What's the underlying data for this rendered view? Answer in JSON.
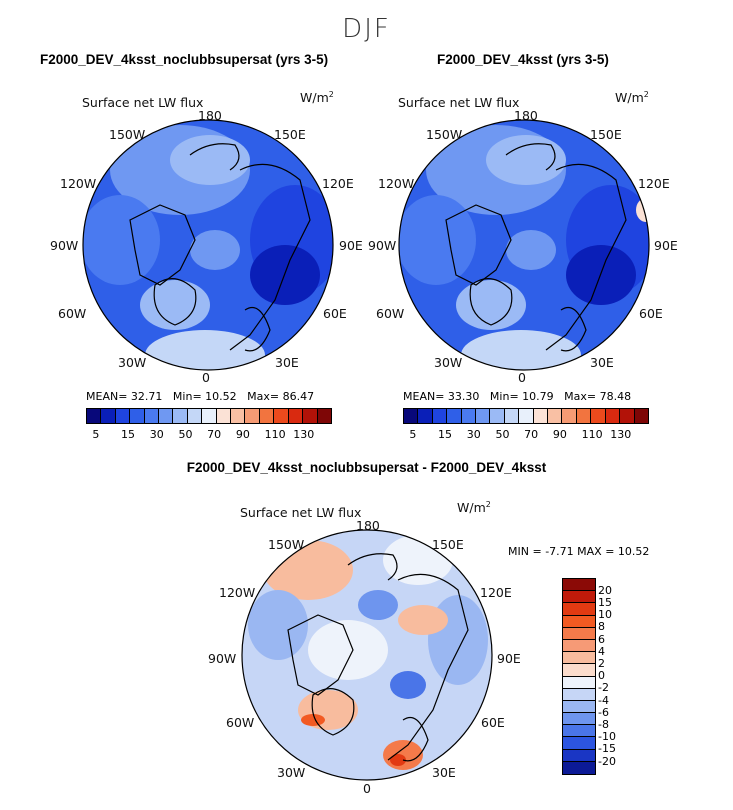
{
  "figure": {
    "season": "DJF",
    "diff_title": "F2000_DEV_4ksst_noclubbsupersat - F2000_DEV_4ksst"
  },
  "panels": [
    {
      "title": "F2000_DEV_4ksst_noclubbsupersat (yrs 3-5)",
      "variable": "Surface net LW flux",
      "units": "W/m",
      "units_exp": "2",
      "stats": {
        "mean_label": "MEAN=",
        "mean": "32.71",
        "min_label": "Min=",
        "min": "10.52",
        "max_label": "Max=",
        "max": "86.47"
      }
    },
    {
      "title": "F2000_DEV_4ksst (yrs 3-5)",
      "variable": "Surface net LW flux",
      "units": "W/m",
      "units_exp": "2",
      "stats": {
        "mean_label": "MEAN=",
        "mean": "33.30",
        "min_label": "Min=",
        "min": "10.79",
        "max_label": "Max=",
        "max": "78.48"
      }
    },
    {
      "title": "",
      "variable": "Surface net LW flux",
      "units": "W/m",
      "units_exp": "2",
      "stats": {
        "min_label": "MIN =",
        "min": "-7.71",
        "max_label": "MAX =",
        "max": "10.52"
      }
    }
  ],
  "longitude_labels": {
    "top": "180",
    "bottom": "0",
    "left": [
      "150W",
      "120W",
      "90W",
      "60W",
      "30W"
    ],
    "right": [
      "150E",
      "120E",
      "90E",
      "60E",
      "30E"
    ]
  },
  "colorbars": {
    "abs": {
      "ticks": [
        "5",
        "15",
        "30",
        "50",
        "70",
        "90",
        "110",
        "130"
      ],
      "colors": [
        "#08087a",
        "#0a1fb8",
        "#1f44e0",
        "#2f5fe8",
        "#4a7af0",
        "#6f98f2",
        "#9bbaf5",
        "#c4d7f7",
        "#e8f0fb",
        "#fbe2d6",
        "#f9c0a4",
        "#f69b74",
        "#f2743f",
        "#ec4a1d",
        "#d92a10",
        "#b21208",
        "#7e0606"
      ]
    },
    "diff": {
      "ticks": [
        "20",
        "15",
        "10",
        "8",
        "6",
        "4",
        "2",
        "0",
        "-2",
        "-4",
        "-6",
        "-8",
        "-10",
        "-15",
        "-20"
      ],
      "colors": [
        "#8b0a06",
        "#c01a0a",
        "#e23a12",
        "#f25a22",
        "#f47a4a",
        "#f69a76",
        "#f8bc9e",
        "#fbdccc",
        "#eef3fb",
        "#c6d6f6",
        "#9ab7f2",
        "#6e95ee",
        "#4a75e8",
        "#2c55e0",
        "#1a36c4",
        "#0c1a96"
      ]
    }
  },
  "chart_data": {
    "type": "heatmap",
    "description_variable": "Surface net LW flux",
    "units": "W/m^2",
    "projection": "north polar stereographic",
    "maps": [
      {
        "name": "F2000_DEV_4ksst_noclubbsupersat (yrs 3-5)",
        "mean": 32.71,
        "min": 10.52,
        "max": 86.47
      },
      {
        "name": "F2000_DEV_4ksst (yrs 3-5)",
        "mean": 33.3,
        "min": 10.79,
        "max": 78.48
      },
      {
        "name": "F2000_DEV_4ksst_noclubbsupersat - F2000_DEV_4ksst",
        "min": -7.71,
        "max": 10.52
      }
    ],
    "abs_levels": [
      5,
      10,
      15,
      20,
      25,
      30,
      35,
      40,
      50,
      60,
      70,
      80,
      90,
      100,
      110,
      120,
      130
    ],
    "diff_levels": [
      -20,
      -15,
      -10,
      -8,
      -6,
      -4,
      -2,
      0,
      2,
      4,
      6,
      8,
      10,
      15,
      20
    ]
  }
}
